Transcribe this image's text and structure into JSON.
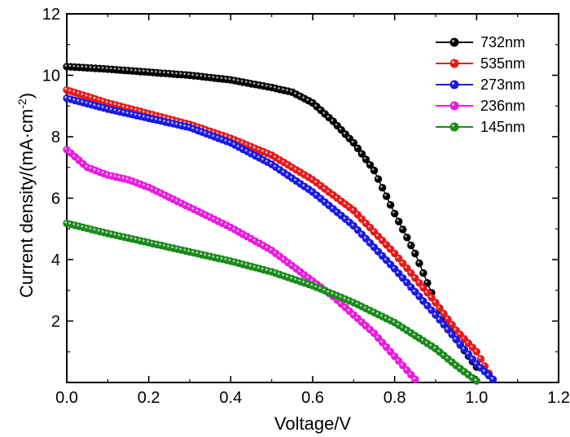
{
  "chart_data": {
    "type": "line",
    "xlabel": "Voltage/V",
    "ylabel": "Current density/(mA·cm",
    "ylabel_sup": "-2",
    "ylabel_close": ")",
    "xlim": [
      0.0,
      1.2
    ],
    "ylim": [
      0,
      12
    ],
    "x_ticks": [
      0.0,
      0.2,
      0.4,
      0.6,
      0.8,
      1.0,
      1.2
    ],
    "x_tick_labels": [
      "0.0",
      "0.2",
      "0.4",
      "0.6",
      "0.8",
      "1.0",
      "1.2"
    ],
    "y_ticks": [
      2,
      4,
      6,
      8,
      10,
      12
    ],
    "y_tick_labels": [
      "2",
      "4",
      "6",
      "8",
      "10",
      "12"
    ],
    "grid": false,
    "legend_position": "top-right",
    "series": [
      {
        "name": "732nm",
        "color": "#000000",
        "points": [
          [
            0.0,
            10.28
          ],
          [
            0.1,
            10.2
          ],
          [
            0.2,
            10.1
          ],
          [
            0.3,
            10.0
          ],
          [
            0.4,
            9.85
          ],
          [
            0.5,
            9.6
          ],
          [
            0.55,
            9.45
          ],
          [
            0.6,
            9.1
          ],
          [
            0.65,
            8.5
          ],
          [
            0.7,
            7.8
          ],
          [
            0.75,
            6.9
          ],
          [
            0.8,
            5.5
          ],
          [
            0.85,
            4.2
          ],
          [
            0.9,
            2.6
          ],
          [
            0.95,
            1.4
          ],
          [
            1.0,
            0.5
          ]
        ]
      },
      {
        "name": "535nm",
        "color": "#e8191a",
        "points": [
          [
            0.0,
            9.52
          ],
          [
            0.1,
            9.1
          ],
          [
            0.2,
            8.75
          ],
          [
            0.3,
            8.4
          ],
          [
            0.4,
            7.95
          ],
          [
            0.5,
            7.4
          ],
          [
            0.6,
            6.6
          ],
          [
            0.7,
            5.6
          ],
          [
            0.8,
            4.2
          ],
          [
            0.9,
            2.6
          ],
          [
            0.95,
            1.7
          ],
          [
            1.0,
            1.0
          ],
          [
            1.03,
            0.3
          ]
        ]
      },
      {
        "name": "273nm",
        "color": "#1a1ae0",
        "points": [
          [
            0.0,
            9.25
          ],
          [
            0.1,
            8.9
          ],
          [
            0.2,
            8.6
          ],
          [
            0.3,
            8.3
          ],
          [
            0.4,
            7.8
          ],
          [
            0.5,
            7.1
          ],
          [
            0.6,
            6.2
          ],
          [
            0.7,
            5.1
          ],
          [
            0.8,
            3.7
          ],
          [
            0.9,
            2.2
          ],
          [
            0.95,
            1.4
          ],
          [
            1.0,
            0.6
          ],
          [
            1.04,
            0.1
          ]
        ]
      },
      {
        "name": "236nm",
        "color": "#ea1ae0",
        "points": [
          [
            0.0,
            7.58
          ],
          [
            0.05,
            7.0
          ],
          [
            0.1,
            6.75
          ],
          [
            0.15,
            6.6
          ],
          [
            0.2,
            6.35
          ],
          [
            0.3,
            5.7
          ],
          [
            0.4,
            5.05
          ],
          [
            0.5,
            4.3
          ],
          [
            0.6,
            3.3
          ],
          [
            0.65,
            2.8
          ],
          [
            0.7,
            2.2
          ],
          [
            0.75,
            1.6
          ],
          [
            0.8,
            0.85
          ],
          [
            0.85,
            0.1
          ]
        ]
      },
      {
        "name": "145nm",
        "color": "#1a8a1a",
        "points": [
          [
            0.0,
            5.18
          ],
          [
            0.1,
            4.85
          ],
          [
            0.2,
            4.55
          ],
          [
            0.3,
            4.25
          ],
          [
            0.4,
            3.95
          ],
          [
            0.5,
            3.6
          ],
          [
            0.6,
            3.15
          ],
          [
            0.7,
            2.6
          ],
          [
            0.8,
            1.95
          ],
          [
            0.9,
            1.1
          ],
          [
            0.95,
            0.55
          ],
          [
            1.0,
            0.05
          ]
        ]
      }
    ]
  }
}
